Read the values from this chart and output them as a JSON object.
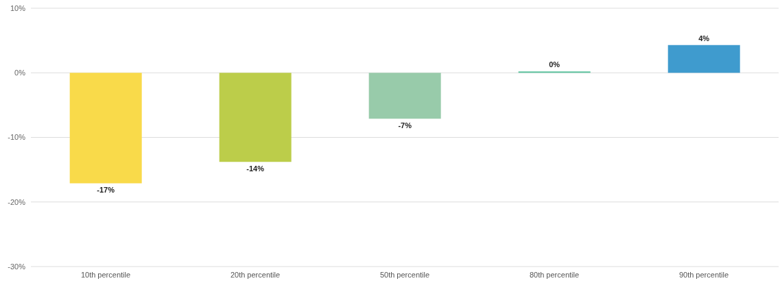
{
  "chart_data": {
    "type": "bar",
    "categories": [
      "10th percentile",
      "20th percentile",
      "50th percentile",
      "80th percentile",
      "90th percentile"
    ],
    "values": [
      -17.1,
      -13.8,
      -7.1,
      0.2,
      4.3
    ],
    "colors": [
      "#f9da4a",
      "#bccd4a",
      "#98cbaa",
      "#5ec49f",
      "#3f9bce"
    ],
    "value_labels": [
      "-17%",
      "-14%",
      "-7%",
      "0%",
      "4%"
    ],
    "ylim": [
      -30,
      10
    ],
    "yticks": [
      {
        "value": -30,
        "label": "-30%"
      },
      {
        "value": -20,
        "label": "-20%"
      },
      {
        "value": -10,
        "label": "-10%"
      },
      {
        "value": 0,
        "label": "0%"
      },
      {
        "value": 10,
        "label": "10%"
      }
    ],
    "grid": "y"
  }
}
